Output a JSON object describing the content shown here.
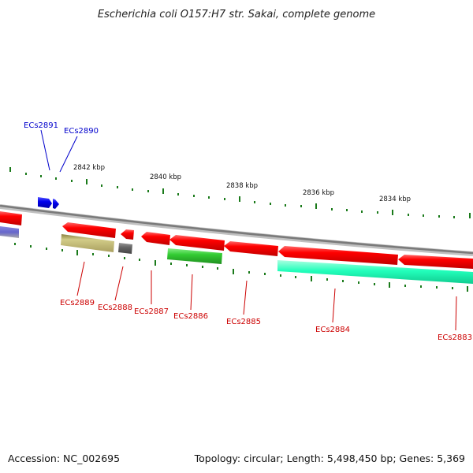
{
  "header": {
    "title": "Escherichia coli O157:H7 str. Sakai, complete genome"
  },
  "footer": {
    "accession": "Accession: NC_002695",
    "summary": "Topology: circular; Length: 5,498,450 bp; Genes: 5,369"
  },
  "kbp_labels": [
    "2842 kbp",
    "2840 kbp",
    "2838 kbp",
    "2836 kbp",
    "2834 kbp"
  ],
  "genes_top": [
    {
      "id": "ECs2891",
      "color": "#0000cc"
    },
    {
      "id": "ECs2890",
      "color": "#0000cc"
    }
  ],
  "genes_bottom": [
    {
      "id": "ECs2889",
      "color": "#cc0000"
    },
    {
      "id": "ECs2888",
      "color": "#cc0000"
    },
    {
      "id": "ECs2887",
      "color": "#cc0000"
    },
    {
      "id": "ECs2886",
      "color": "#cc0000"
    },
    {
      "id": "ECs2885",
      "color": "#cc0000"
    },
    {
      "id": "ECs2884",
      "color": "#cc0000"
    },
    {
      "id": "ECs2883",
      "color": "#cc0000"
    }
  ],
  "colors": {
    "backbone": "#8a8a8a",
    "tick": "#1a7a1a",
    "cds": "#ff0000",
    "gene_blue": "#0000ee",
    "gene_purple": "#6666cc",
    "gene_olive": "#bdb76b",
    "gene_gray": "#666666",
    "gene_green": "#33cc33",
    "gene_teal": "#22ffbb"
  }
}
